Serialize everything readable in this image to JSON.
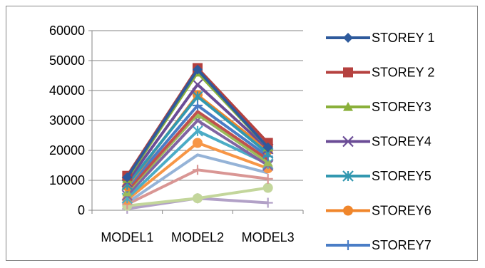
{
  "chart_data": {
    "type": "line",
    "title": "",
    "xlabel": "",
    "ylabel": "",
    "categories": [
      "MODEL1",
      "MODEL2",
      "MODEL3"
    ],
    "ylim": [
      0,
      60000
    ],
    "yticks": [
      0,
      10000,
      20000,
      30000,
      40000,
      50000,
      60000
    ],
    "grid": true,
    "legend_position": "right",
    "series": [
      {
        "name": "STOREY 1",
        "color": "#2E5A9C",
        "marker": "diamond",
        "values": [
          11000,
          47000,
          21000
        ]
      },
      {
        "name": "STOREY 2",
        "color": "#B5413F",
        "marker": "square",
        "values": [
          11500,
          47500,
          22500
        ]
      },
      {
        "name": "STOREY3",
        "color": "#8AB03A",
        "marker": "triangle",
        "values": [
          10500,
          46000,
          21000
        ]
      },
      {
        "name": "STOREY4",
        "color": "#6B4C96",
        "marker": "x",
        "values": [
          9500,
          42000,
          20500
        ]
      },
      {
        "name": "STOREY5",
        "color": "#3298B0",
        "marker": "star",
        "values": [
          8500,
          38000,
          19000
        ]
      },
      {
        "name": "STOREY6",
        "color": "#F0862B",
        "marker": "circle",
        "values": [
          8000,
          38500,
          20000
        ]
      },
      {
        "name": "STOREY7",
        "color": "#4A7DC6",
        "marker": "plus",
        "values": [
          7500,
          35000,
          18000
        ]
      },
      {
        "name": "",
        "color": "#C0504D",
        "marker": "none",
        "values": [
          6500,
          33000,
          17000
        ]
      },
      {
        "name": "",
        "color": "#9BBB59",
        "marker": "triangle",
        "values": [
          6000,
          32000,
          16000
        ]
      },
      {
        "name": "",
        "color": "#8064A2",
        "marker": "x",
        "values": [
          5000,
          30000,
          15000
        ]
      },
      {
        "name": "",
        "color": "#4BACC6",
        "marker": "star",
        "values": [
          4000,
          26500,
          15500
        ]
      },
      {
        "name": "",
        "color": "#F79646",
        "marker": "circle",
        "values": [
          3500,
          22500,
          14000
        ]
      },
      {
        "name": "",
        "color": "#95B3D7",
        "marker": "none",
        "values": [
          2500,
          18500,
          12500
        ]
      },
      {
        "name": "",
        "color": "#D99694",
        "marker": "plus",
        "values": [
          2000,
          13500,
          10500
        ]
      },
      {
        "name": "",
        "color": "#C3D69B",
        "marker": "circle",
        "values": [
          1500,
          4000,
          7500
        ]
      },
      {
        "name": "",
        "color": "#B2A1C7",
        "marker": "plus",
        "values": [
          500,
          4000,
          2500
        ]
      }
    ]
  }
}
